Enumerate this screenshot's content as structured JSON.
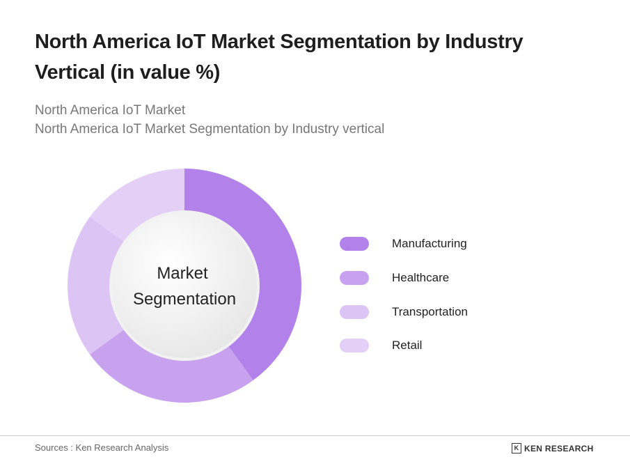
{
  "title": "North America IoT Market Segmentation by Industry Vertical (in value %)",
  "subtitle1": "North America IoT Market",
  "subtitle2": "North America IoT Market Segmentation by Industry vertical",
  "chart_data": {
    "type": "pie",
    "center_label": [
      "Market",
      "Segmentation"
    ],
    "categories": [
      "Manufacturing",
      "Healthcare",
      "Transportation",
      "Retail"
    ],
    "values": [
      40,
      25,
      20,
      15
    ],
    "colors": [
      "#b282ea",
      "#c8a2ee",
      "#dcc4f5",
      "#e4d0f7"
    ],
    "legend": "right"
  },
  "footer": {
    "source": "Sources : Ken Research Analysis",
    "logo": "KEN RESEARCH"
  }
}
